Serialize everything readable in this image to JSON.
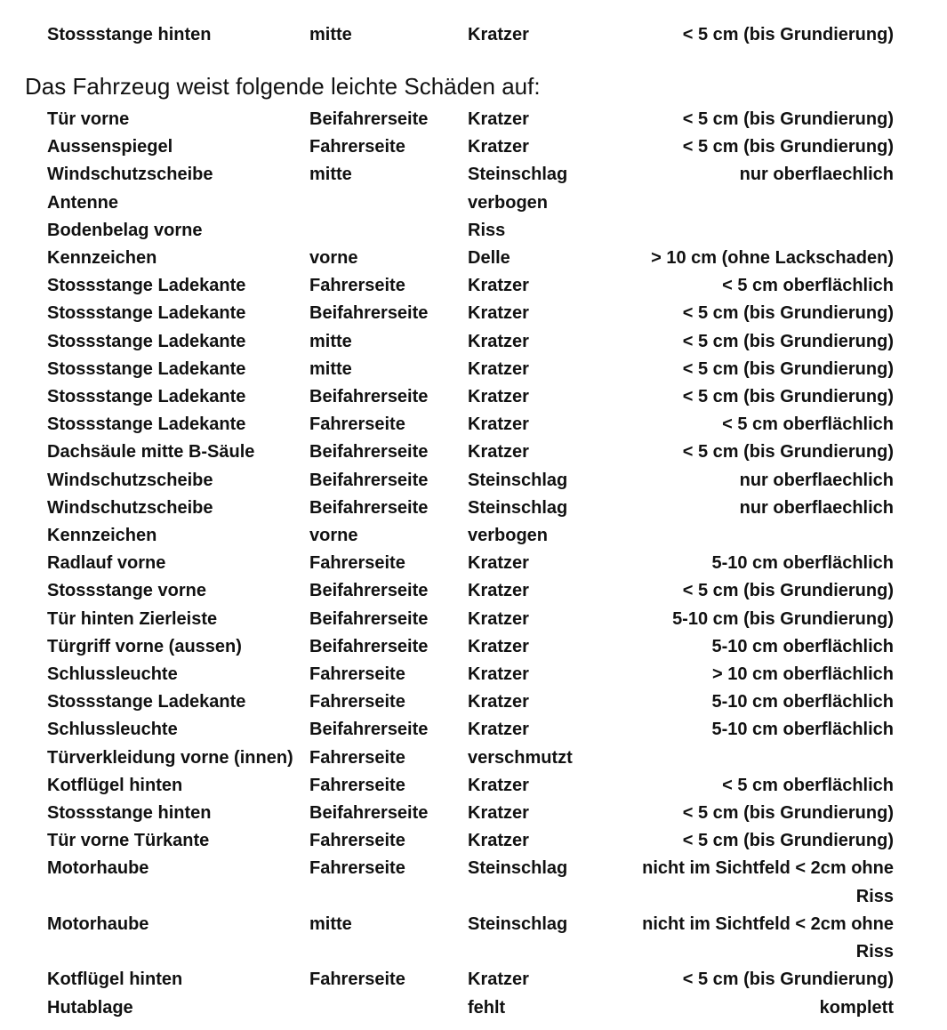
{
  "previous_row": {
    "part": "Stossstange hinten",
    "location": "mitte",
    "damage": "Kratzer",
    "detail": "< 5 cm (bis Grundierung)"
  },
  "heading": "Das Fahrzeug weist folgende leichte Schäden auf:",
  "rows": [
    {
      "part": "Tür vorne",
      "location": "Beifahrerseite",
      "damage": "Kratzer",
      "detail": "< 5 cm (bis Grundierung)"
    },
    {
      "part": "Aussenspiegel",
      "location": "Fahrerseite",
      "damage": "Kratzer",
      "detail": "< 5 cm (bis Grundierung)"
    },
    {
      "part": "Windschutzscheibe",
      "location": "mitte",
      "damage": "Steinschlag",
      "detail": "nur oberflaechlich"
    },
    {
      "part": "Antenne",
      "location": "",
      "damage": "verbogen",
      "detail": ""
    },
    {
      "part": "Bodenbelag vorne",
      "location": "",
      "damage": "Riss",
      "detail": ""
    },
    {
      "part": "Kennzeichen",
      "location": "vorne",
      "damage": "Delle",
      "detail": "> 10 cm (ohne Lackschaden)"
    },
    {
      "part": "Stossstange Ladekante",
      "location": "Fahrerseite",
      "damage": "Kratzer",
      "detail": "< 5 cm oberflächlich"
    },
    {
      "part": "Stossstange Ladekante",
      "location": "Beifahrerseite",
      "damage": "Kratzer",
      "detail": "< 5 cm (bis Grundierung)"
    },
    {
      "part": "Stossstange Ladekante",
      "location": "mitte",
      "damage": "Kratzer",
      "detail": "< 5 cm (bis Grundierung)"
    },
    {
      "part": "Stossstange Ladekante",
      "location": "mitte",
      "damage": "Kratzer",
      "detail": "< 5 cm (bis Grundierung)"
    },
    {
      "part": "Stossstange Ladekante",
      "location": "Beifahrerseite",
      "damage": "Kratzer",
      "detail": "< 5 cm (bis Grundierung)"
    },
    {
      "part": "Stossstange Ladekante",
      "location": "Fahrerseite",
      "damage": "Kratzer",
      "detail": "< 5 cm oberflächlich"
    },
    {
      "part": "Dachsäule mitte B-Säule",
      "location": "Beifahrerseite",
      "damage": "Kratzer",
      "detail": "< 5 cm (bis Grundierung)"
    },
    {
      "part": "Windschutzscheibe",
      "location": "Beifahrerseite",
      "damage": "Steinschlag",
      "detail": "nur oberflaechlich"
    },
    {
      "part": "Windschutzscheibe",
      "location": "Beifahrerseite",
      "damage": "Steinschlag",
      "detail": "nur oberflaechlich"
    },
    {
      "part": "Kennzeichen",
      "location": "vorne",
      "damage": "verbogen",
      "detail": ""
    },
    {
      "part": "Radlauf vorne",
      "location": "Fahrerseite",
      "damage": "Kratzer",
      "detail": "5-10 cm oberflächlich"
    },
    {
      "part": "Stossstange vorne",
      "location": "Beifahrerseite",
      "damage": "Kratzer",
      "detail": "< 5 cm (bis Grundierung)"
    },
    {
      "part": "Tür hinten Zierleiste",
      "location": "Beifahrerseite",
      "damage": "Kratzer",
      "detail": "5-10 cm (bis Grundierung)"
    },
    {
      "part": "Türgriff vorne (aussen)",
      "location": "Beifahrerseite",
      "damage": "Kratzer",
      "detail": "5-10 cm oberflächlich"
    },
    {
      "part": "Schlussleuchte",
      "location": "Fahrerseite",
      "damage": "Kratzer",
      "detail": "> 10 cm oberflächlich"
    },
    {
      "part": "Stossstange Ladekante",
      "location": "Fahrerseite",
      "damage": "Kratzer",
      "detail": "5-10 cm oberflächlich"
    },
    {
      "part": "Schlussleuchte",
      "location": "Beifahrerseite",
      "damage": "Kratzer",
      "detail": "5-10 cm oberflächlich"
    },
    {
      "part": "Türverkleidung vorne (innen)",
      "location": "Fahrerseite",
      "damage": "verschmutzt",
      "detail": ""
    },
    {
      "part": "Kotflügel hinten",
      "location": "Fahrerseite",
      "damage": "Kratzer",
      "detail": "< 5 cm oberflächlich"
    },
    {
      "part": "Stossstange hinten",
      "location": "Beifahrerseite",
      "damage": "Kratzer",
      "detail": "< 5 cm (bis Grundierung)"
    },
    {
      "part": "Tür vorne Türkante",
      "location": "Fahrerseite",
      "damage": "Kratzer",
      "detail": "< 5 cm (bis Grundierung)"
    },
    {
      "part": "Motorhaube",
      "location": "Fahrerseite",
      "damage": "Steinschlag",
      "detail": "nicht im Sichtfeld < 2cm ohne Riss"
    },
    {
      "part": "Motorhaube",
      "location": "mitte",
      "damage": "Steinschlag",
      "detail": "nicht im Sichtfeld < 2cm ohne Riss"
    },
    {
      "part": "Kotflügel hinten",
      "location": "Fahrerseite",
      "damage": "Kratzer",
      "detail": "< 5 cm (bis Grundierung)"
    },
    {
      "part": "Hutablage",
      "location": "",
      "damage": "fehlt",
      "detail": "komplett"
    }
  ]
}
